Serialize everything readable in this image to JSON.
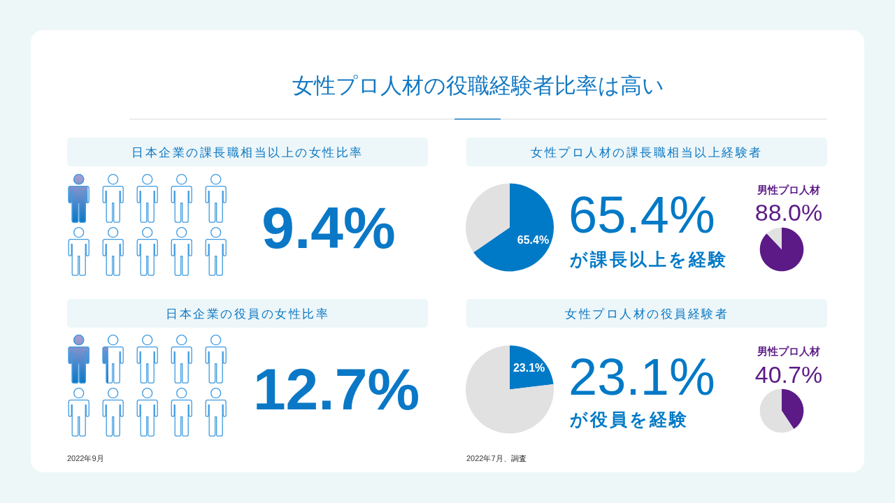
{
  "chart_data": [
    {
      "type": "other",
      "title": "女性プロ人材の役職経験者比率は高い"
    },
    {
      "type": "other",
      "title": "日本企業の課長職相当以上の女性比率",
      "values": [
        9.4
      ],
      "value_labels": [
        "9.4%"
      ],
      "color": "#0a78c6"
    },
    {
      "type": "pie",
      "title": "女性プロ人材の課長職相当以上経験者",
      "categories": [
        null,
        null
      ],
      "values": [
        65.4,
        34.6
      ],
      "colors": [
        "#0079c6",
        "#e1e1e1"
      ],
      "value_labels": [
        "65.4%",
        null
      ],
      "annotations": [
        "65.4%",
        "が課長以上を経験"
      ]
    },
    {
      "type": "pie",
      "title": "男性プロ人材",
      "categories": [
        null,
        null
      ],
      "values": [
        88.0,
        12.0
      ],
      "colors": [
        "#5b1a86",
        "#e1e1e1"
      ],
      "value_labels": [
        "88.0%",
        null
      ]
    },
    {
      "type": "other",
      "title": "日本企業の役員の女性比率",
      "values": [
        12.7
      ],
      "value_labels": [
        "12.7%"
      ],
      "color": "#0a78c6",
      "annotations": [
        "2022年9月"
      ]
    },
    {
      "type": "pie",
      "title": "女性プロ人材の役員経験者",
      "categories": [
        null,
        null
      ],
      "values": [
        23.1,
        76.9
      ],
      "colors": [
        "#0079c6",
        "#e1e1e1"
      ],
      "value_labels": [
        "23.1%",
        null
      ],
      "annotations": [
        "23.1%",
        "が役員を経験",
        "2022年7月、調査"
      ]
    },
    {
      "type": "pie",
      "title": "男性プロ人材",
      "categories": [
        null,
        null
      ],
      "values": [
        40.7,
        59.3
      ],
      "colors": [
        "#5b1a86",
        "#e1e1e1"
      ],
      "value_labels": [
        "40.7%",
        null
      ]
    }
  ]
}
